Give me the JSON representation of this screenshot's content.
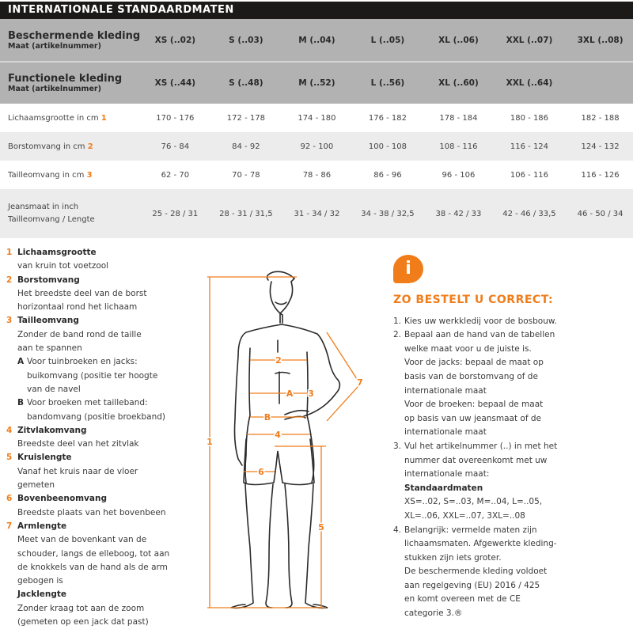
{
  "title": "INTERNATIONALE STANDAARDMATEN",
  "table": {
    "header1": {
      "title": "Beschermende kleding",
      "subtitle": "Maat (artikelnummer)",
      "sizes": [
        "XS (..02)",
        "S (..03)",
        "M (..04)",
        "L (..05)",
        "XL (..06)",
        "XXL (..07)",
        "3XL (..08)"
      ]
    },
    "header2": {
      "title": "Functionele kleding",
      "subtitle": "Maat (artikelnummer)",
      "sizes": [
        "XS (..44)",
        "S (..48)",
        "M (..52)",
        "L (..56)",
        "XL (..60)",
        "XXL (..64)",
        ""
      ]
    },
    "rows": [
      {
        "label": "Lichaamsgrootte in cm",
        "num": "1",
        "values": [
          "170 - 176",
          "172 - 178",
          "174 - 180",
          "176 - 182",
          "178 - 184",
          "180 - 186",
          "182 - 188"
        ]
      },
      {
        "label": "Borstomvang in cm",
        "num": "2",
        "values": [
          "76 - 84",
          "84 - 92",
          "92 - 100",
          "100 - 108",
          "108 - 116",
          "116 - 124",
          "124 - 132"
        ]
      },
      {
        "label": "Tailleomvang in cm",
        "num": "3",
        "values": [
          "62 - 70",
          "70 - 78",
          "78 - 86",
          "86 - 96",
          "96 - 106",
          "106 - 116",
          "116 - 126"
        ]
      }
    ],
    "jeans": {
      "label1": "Jeansmaat in inch",
      "label2": "Tailleomvang / Lengte",
      "values": [
        "25 - 28 / 31",
        "28 - 31 / 31,5",
        "31 - 34 / 32",
        "34 - 38 / 32,5",
        "38 - 42 / 33",
        "42 - 46 / 33,5",
        "46 - 50 / 34"
      ]
    }
  },
  "legend": [
    {
      "num": "1",
      "title": "Lichaamsgrootte",
      "lines": [
        "van kruin tot voetzool"
      ]
    },
    {
      "num": "2",
      "title": "Borstomvang",
      "lines": [
        "Het breedste deel van de borst",
        "horizontaal rond het lichaam"
      ]
    },
    {
      "num": "3",
      "title": "Tailleomvang",
      "lines": [
        "Zonder de band rond de taille",
        "aan te spannen"
      ],
      "subs": [
        {
          "letter": "A",
          "lines": [
            "Voor tuinbroeken en jacks:",
            "buikomvang (positie ter hoogte",
            "van de navel"
          ]
        },
        {
          "letter": "B",
          "lines": [
            "Voor broeken met tailleband:",
            "bandomvang (positie broekband)"
          ]
        }
      ]
    },
    {
      "num": "4",
      "title": "Zitvlakomvang",
      "lines": [
        "Breedste deel van het zitvlak"
      ]
    },
    {
      "num": "5",
      "title": "Kruislengte",
      "lines": [
        "Vanaf het kruis naar de vloer",
        "gemeten"
      ]
    },
    {
      "num": "6",
      "title": "Bovenbeenomvang",
      "lines": [
        "Breedste plaats van het bovenbeen"
      ]
    },
    {
      "num": "7",
      "title": "Armlengte",
      "lines": [
        "Meet van de bovenkant van de",
        "schouder, langs de elleboog, tot aan",
        "de knokkels van de hand als de arm",
        "gebogen is"
      ],
      "title2": "Jacklengte",
      "lines2": [
        "Zonder kraag tot aan de zoom",
        "(gemeten op een jack dat past)"
      ]
    }
  ],
  "figure_labels": [
    "1",
    "2",
    "A",
    "3",
    "B",
    "4",
    "6",
    "7",
    "5"
  ],
  "info": {
    "icon": "info-icon",
    "letter": "i",
    "title": "ZO BESTELT U CORRECT:",
    "items": [
      {
        "num": "1.",
        "lines": [
          "Kies uw werkkledij voor de bosbouw."
        ]
      },
      {
        "num": "2.",
        "lines": [
          "Bepaal aan de hand van de tabellen",
          "welke maat voor u de juiste is.",
          "Voor de jacks: bepaal de maat op",
          "basis van de borstomvang of de",
          "internationale maat",
          "Voor de broeken: bepaal de maat",
          "op basis van uw jeansmaat of de",
          "internationale maat"
        ]
      },
      {
        "num": "3.",
        "lines": [
          "Vul het artikelnummer (..) in met het",
          "nummer dat overeenkomt met uw",
          "internationale maat:"
        ],
        "bold": "Standaardmaten",
        "lines2": [
          "XS=..02, S=..03, M=..04, L=..05,",
          "XL=..06, XXL=..07, 3XL=..08"
        ]
      },
      {
        "num": "4.",
        "lines": [
          "Belangrijk: vermelde maten zijn",
          "lichaamsmaten. Afgewerkte kleding-",
          "stukken zijn iets groter.",
          "De beschermende kleding voldoet",
          "aan regelgeving (EU) 2016 / 425",
          "en komt overeen met de CE",
          "categorie 3.®"
        ]
      }
    ]
  },
  "colors": {
    "accent": "#f07d1a",
    "title_bar": "#1b1a19",
    "header_bg": "#b2b2b2",
    "row_alt": "#ececec"
  }
}
